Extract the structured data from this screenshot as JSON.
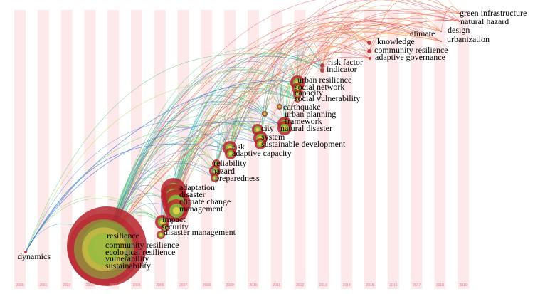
{
  "years": [
    "2000",
    "2001",
    "2002",
    "2003",
    "2004",
    "2005",
    "2006",
    "2007",
    "2008",
    "2009",
    "2010",
    "2011",
    "2012",
    "2013",
    "2014",
    "2015",
    "2016",
    "2017",
    "2018",
    "2019"
  ],
  "colors": {
    "band": "#fde8ea",
    "year_text": "#e07b8a",
    "node_outer": "#b5232c",
    "node_mid": "#7fbf3f",
    "node_inner": "#e8d24a",
    "link_blue": "#2e6bd6",
    "link_green": "#3cbf5c",
    "link_teal": "#2aa7b8",
    "link_orange": "#f0a040",
    "link_red": "#e0403a",
    "link_lime": "#a0d040"
  },
  "keywords": [
    {
      "id": "dynamics",
      "label": "dynamics",
      "year": "2000"
    },
    {
      "id": "resilience",
      "label": "resilience",
      "year": "2004"
    },
    {
      "id": "community-resilience-2004",
      "label": "community resilience",
      "year": "2004"
    },
    {
      "id": "ecological-resilience",
      "label": "ecological resilience",
      "year": "2004"
    },
    {
      "id": "vulnerability",
      "label": "vulnerability",
      "year": "2004"
    },
    {
      "id": "sustainability",
      "label": "sustainability",
      "year": "2004"
    },
    {
      "id": "impact",
      "label": "impact",
      "year": "2006"
    },
    {
      "id": "security",
      "label": "security",
      "year": "2006"
    },
    {
      "id": "disaster-management",
      "label": "disaster management",
      "year": "2006"
    },
    {
      "id": "adaptation",
      "label": "adaptation",
      "year": "2007"
    },
    {
      "id": "disaster",
      "label": "disaster",
      "year": "2007"
    },
    {
      "id": "climate-change",
      "label": "climate change",
      "year": "2007"
    },
    {
      "id": "management",
      "label": "management",
      "year": "2007"
    },
    {
      "id": "reliability",
      "label": "reliability",
      "year": "2009"
    },
    {
      "id": "hazard",
      "label": "hazard",
      "year": "2009"
    },
    {
      "id": "preparedness",
      "label": "preparedness",
      "year": "2009"
    },
    {
      "id": "risk",
      "label": "risk",
      "year": "2010"
    },
    {
      "id": "adaptive-capacity",
      "label": "adaptive capacity",
      "year": "2010"
    },
    {
      "id": "city",
      "label": "city",
      "year": "2011"
    },
    {
      "id": "system",
      "label": "system",
      "year": "2011"
    },
    {
      "id": "sustainable-development",
      "label": "sustainable development",
      "year": "2011"
    },
    {
      "id": "earthquake",
      "label": "earthquake",
      "year": "2012"
    },
    {
      "id": "urban-planning",
      "label": "urban planning",
      "year": "2012"
    },
    {
      "id": "framework",
      "label": "framework",
      "year": "2012"
    },
    {
      "id": "natural-disaster",
      "label": "natural disaster",
      "year": "2012"
    },
    {
      "id": "urban-resilience",
      "label": "urban resilience",
      "year": "2013"
    },
    {
      "id": "social-network",
      "label": "social network",
      "year": "2013"
    },
    {
      "id": "capacity",
      "label": "capacity",
      "year": "2013"
    },
    {
      "id": "social-vulnerability",
      "label": "social vulnerability",
      "year": "2013"
    },
    {
      "id": "risk-factor",
      "label": "risk factor",
      "year": "2014"
    },
    {
      "id": "indicator",
      "label": "indicator",
      "year": "2014"
    },
    {
      "id": "knowledge",
      "label": "knowledge",
      "year": "2016"
    },
    {
      "id": "community-resilience-2016",
      "label": "community resilience",
      "year": "2016"
    },
    {
      "id": "adaptive-governance",
      "label": "adaptive governance",
      "year": "2016"
    },
    {
      "id": "climate",
      "label": "climate",
      "year": "2017"
    },
    {
      "id": "design",
      "label": "design",
      "year": "2018"
    },
    {
      "id": "urbanization",
      "label": "urbanization",
      "year": "2018"
    },
    {
      "id": "green-infrastructure",
      "label": "green infrastructure",
      "year": "2019"
    },
    {
      "id": "natural-hazard",
      "label": "natural hazard",
      "year": "2019"
    }
  ]
}
